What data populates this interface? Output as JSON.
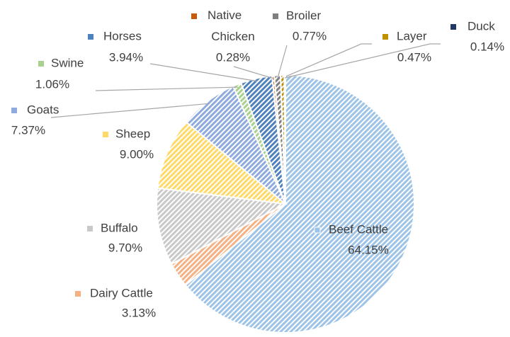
{
  "chart_data": {
    "type": "pie",
    "categories": [
      "Beef Cattle",
      "Dairy Cattle",
      "Buffalo",
      "Sheep",
      "Goats",
      "Swine",
      "Horses",
      "Native Chicken",
      "Broiler",
      "Layer",
      "Duck"
    ],
    "values": [
      64.15,
      3.13,
      9.7,
      9.0,
      7.37,
      1.06,
      3.94,
      0.28,
      0.77,
      0.47,
      0.14
    ],
    "value_labels": [
      "64.15%",
      "3.13%",
      "9.70%",
      "9.00%",
      "7.37%",
      "1.06%",
      "3.94%",
      "0.28%",
      "0.77%",
      "0.47%",
      "0.14%"
    ],
    "colors": [
      "#9dc3e6",
      "#f4b183",
      "#c9c9c9",
      "#ffd966",
      "#8faadc",
      "#a9d18e",
      "#4f81bd",
      "#c55a11",
      "#7f7f7f",
      "#bf9000",
      "#203864"
    ],
    "hatched": true
  }
}
